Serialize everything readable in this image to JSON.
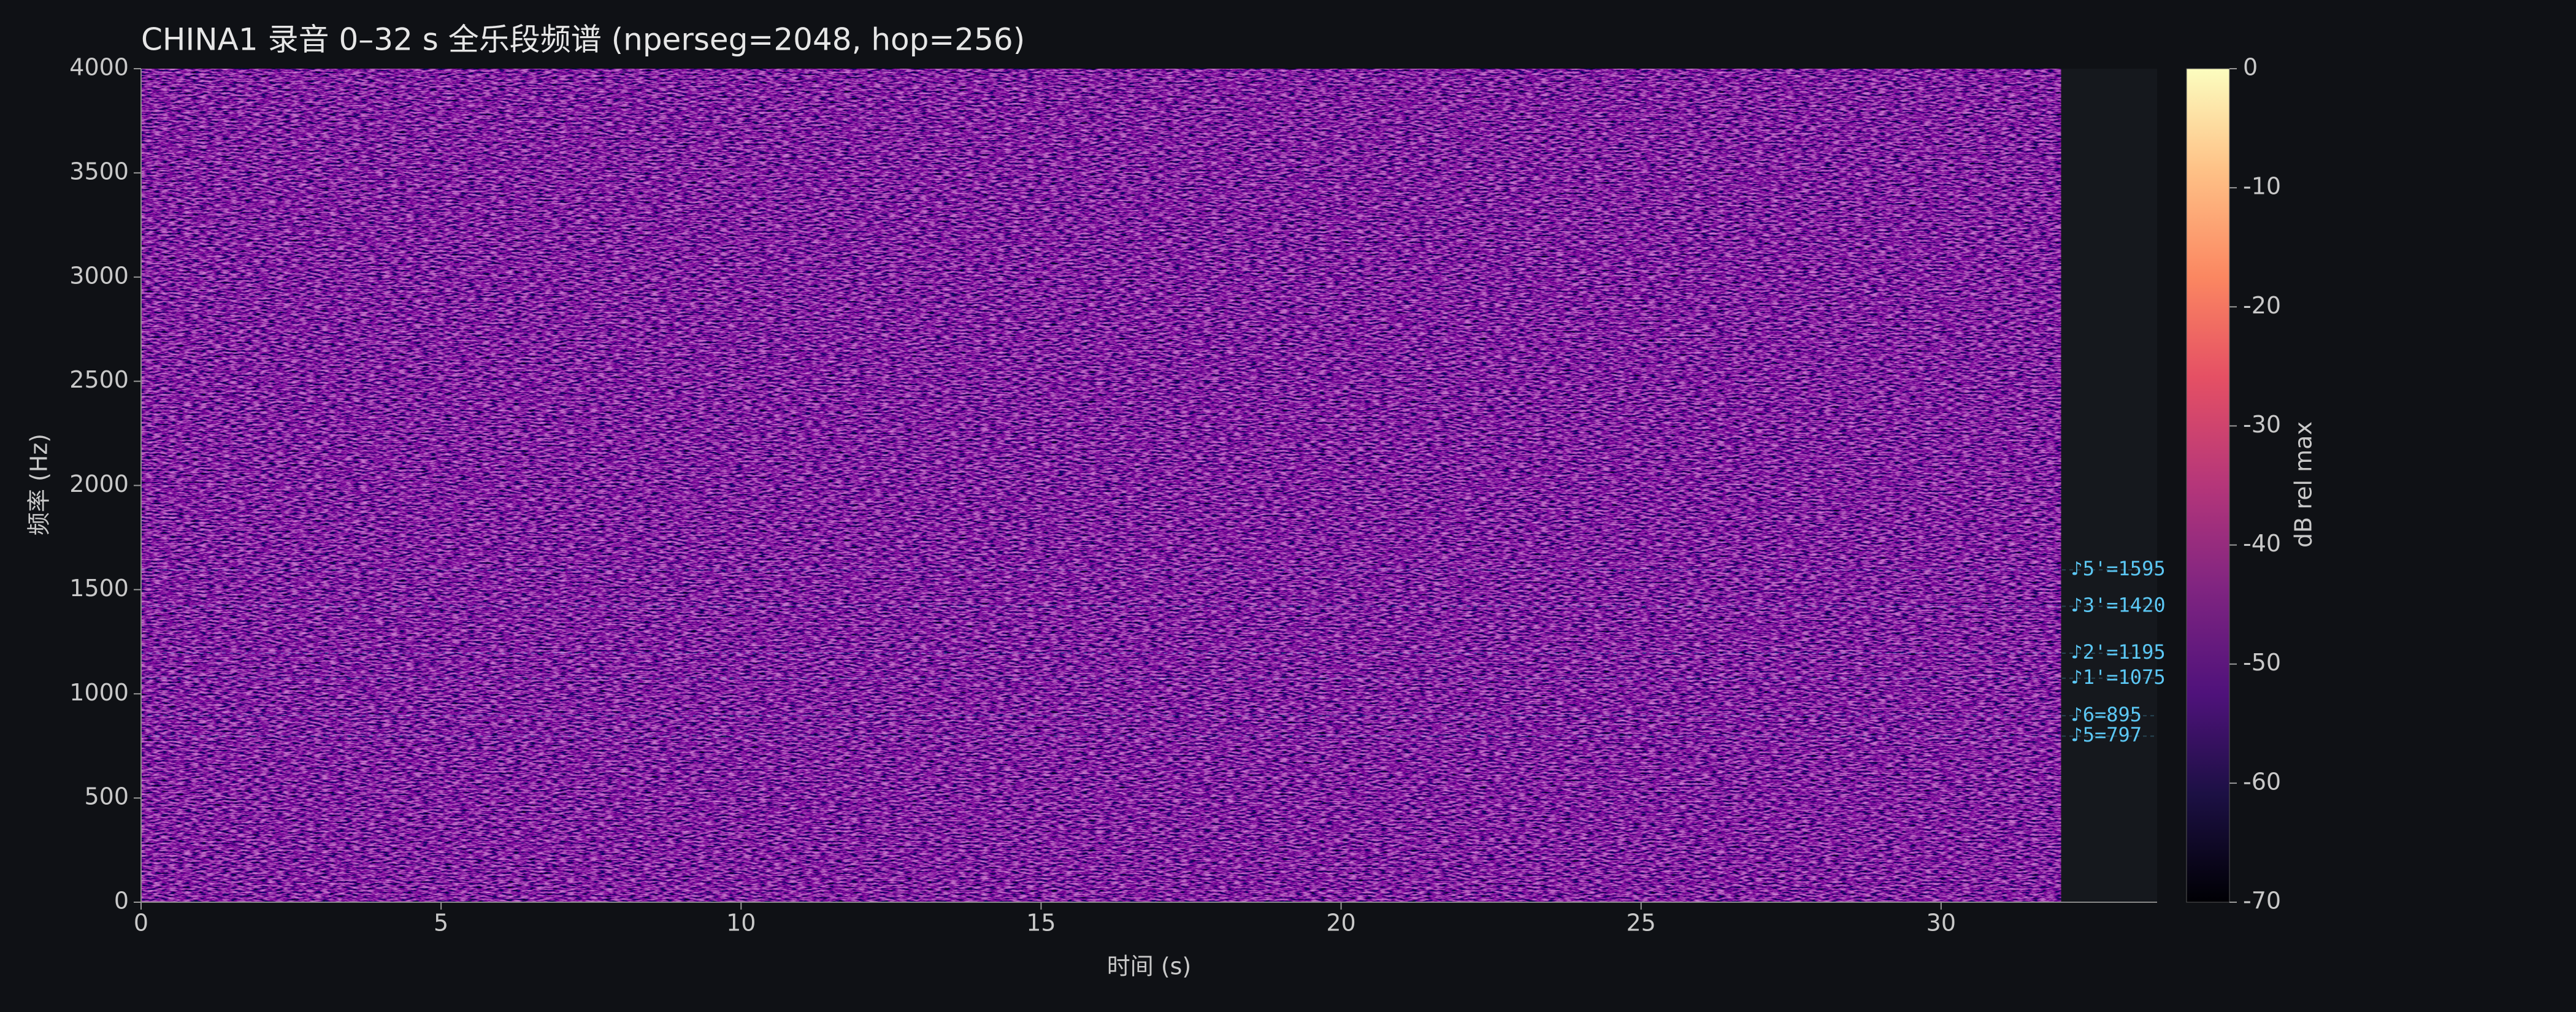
{
  "chart_data": {
    "type": "spectrogram",
    "title": "CHINA1 录音 0–32 s 全乐段频谱 (nperseg=2048, hop=256)",
    "x_label": "时间 (s)",
    "y_label": "频率 (Hz)",
    "xlim": [
      0,
      33.6
    ],
    "xticks": [
      0,
      5,
      10,
      15,
      20,
      25,
      30
    ],
    "ylim": [
      0,
      4000
    ],
    "yticks": [
      0,
      500,
      1000,
      1500,
      2000,
      2500,
      3000,
      3500,
      4000
    ],
    "time_extent": [
      0,
      32
    ],
    "colormap": "magma",
    "colorbar": {
      "label": "dB rel max",
      "clim": [
        -70,
        0
      ],
      "ticks": [
        0,
        -10,
        -20,
        -30,
        -40,
        -50,
        -60,
        -70
      ]
    },
    "annotations": [
      {
        "label": "♪5'=1595",
        "value": 1595
      },
      {
        "label": "♪3'=1420",
        "value": 1420
      },
      {
        "label": "♪2'=1195",
        "value": 1195
      },
      {
        "label": "♪1'=1075",
        "value": 1075
      },
      {
        "label": "♪6=895",
        "value": 895
      },
      {
        "label": "♪5=797",
        "value": 797
      }
    ]
  }
}
